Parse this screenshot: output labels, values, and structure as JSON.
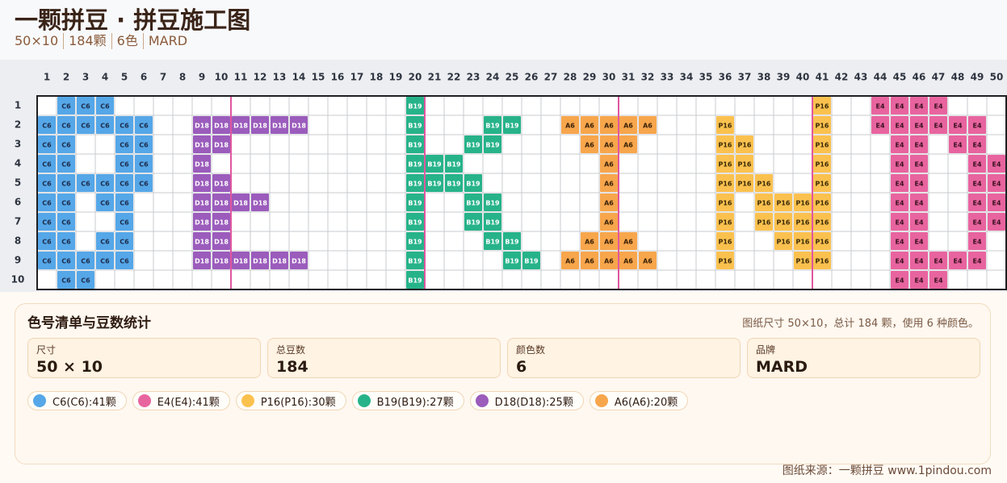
{
  "header": {
    "title": "一颗拼豆 · 拼豆施工图",
    "subtitle_parts": [
      "50×10",
      "184颗",
      "6色",
      "MARD"
    ]
  },
  "grid": {
    "column_labels": [
      1,
      2,
      3,
      4,
      5,
      6,
      7,
      8,
      9,
      10,
      11,
      12,
      13,
      14,
      15,
      16,
      17,
      18,
      19,
      20,
      21,
      22,
      23,
      24,
      25,
      26,
      27,
      28,
      29,
      30,
      31,
      32,
      33,
      34,
      35,
      36,
      37,
      38,
      39,
      40,
      41,
      42,
      43,
      44,
      45,
      46,
      47,
      48,
      49,
      50
    ],
    "row_labels": [
      1,
      2,
      3,
      4,
      5,
      6,
      7,
      8,
      9,
      10
    ],
    "rows": [
      [
        null,
        "C6",
        "C6",
        "C6",
        null,
        null,
        null,
        null,
        null,
        null,
        null,
        null,
        null,
        null,
        null,
        null,
        null,
        null,
        null,
        "B19",
        null,
        null,
        null,
        null,
        null,
        null,
        null,
        null,
        null,
        null,
        null,
        null,
        null,
        null,
        null,
        null,
        null,
        null,
        null,
        null,
        "P16",
        null,
        null,
        "E4",
        "E4",
        "E4",
        "E4",
        null,
        null,
        null
      ],
      [
        "C6",
        "C6",
        "C6",
        "C6",
        "C6",
        "C6",
        null,
        null,
        "D18",
        "D18",
        "D18",
        "D18",
        "D18",
        "D18",
        null,
        null,
        null,
        null,
        null,
        "B19",
        null,
        null,
        null,
        "B19",
        "B19",
        null,
        null,
        "A6",
        "A6",
        "A6",
        "A6",
        "A6",
        null,
        null,
        null,
        "P16",
        null,
        null,
        null,
        null,
        "P16",
        null,
        null,
        "E4",
        "E4",
        "E4",
        "E4",
        "E4",
        "E4",
        null
      ],
      [
        "C6",
        "C6",
        null,
        null,
        "C6",
        "C6",
        null,
        null,
        "D18",
        "D18",
        null,
        null,
        null,
        null,
        null,
        null,
        null,
        null,
        null,
        "B19",
        null,
        null,
        "B19",
        "B19",
        null,
        null,
        null,
        null,
        "A6",
        "A6",
        "A6",
        null,
        null,
        null,
        null,
        "P16",
        "P16",
        null,
        null,
        null,
        "P16",
        null,
        null,
        null,
        "E4",
        "E4",
        null,
        "E4",
        "E4",
        null
      ],
      [
        "C6",
        "C6",
        null,
        null,
        "C6",
        "C6",
        null,
        null,
        "D18",
        null,
        null,
        null,
        null,
        null,
        null,
        null,
        null,
        null,
        null,
        "B19",
        "B19",
        "B19",
        null,
        null,
        null,
        null,
        null,
        null,
        null,
        "A6",
        null,
        null,
        null,
        null,
        null,
        "P16",
        "P16",
        null,
        null,
        null,
        "P16",
        null,
        null,
        null,
        "E4",
        "E4",
        null,
        null,
        "E4",
        "E4"
      ],
      [
        "C6",
        "C6",
        "C6",
        "C6",
        "C6",
        "C6",
        null,
        null,
        "D18",
        "D18",
        null,
        null,
        null,
        null,
        null,
        null,
        null,
        null,
        null,
        "B19",
        "B19",
        "B19",
        "B19",
        null,
        null,
        null,
        null,
        null,
        null,
        "A6",
        null,
        null,
        null,
        null,
        null,
        "P16",
        "P16",
        "P16",
        null,
        null,
        "P16",
        null,
        null,
        null,
        "E4",
        "E4",
        null,
        null,
        "E4",
        "E4"
      ],
      [
        "C6",
        "C6",
        null,
        "C6",
        "C6",
        null,
        null,
        null,
        "D18",
        "D18",
        "D18",
        "D18",
        null,
        null,
        null,
        null,
        null,
        null,
        null,
        "B19",
        null,
        null,
        "B19",
        "B19",
        null,
        null,
        null,
        null,
        null,
        "A6",
        null,
        null,
        null,
        null,
        null,
        "P16",
        null,
        "P16",
        "P16",
        "P16",
        "P16",
        null,
        null,
        null,
        "E4",
        "E4",
        null,
        null,
        "E4",
        "E4"
      ],
      [
        "C6",
        "C6",
        null,
        null,
        "C6",
        null,
        null,
        null,
        "D18",
        "D18",
        null,
        null,
        null,
        null,
        null,
        null,
        null,
        null,
        null,
        "B19",
        null,
        null,
        "B19",
        "B19",
        null,
        null,
        null,
        null,
        null,
        "A6",
        null,
        null,
        null,
        null,
        null,
        "P16",
        null,
        "P16",
        "P16",
        "P16",
        "P16",
        null,
        null,
        null,
        "E4",
        "E4",
        null,
        null,
        "E4",
        "E4"
      ],
      [
        "C6",
        "C6",
        null,
        "C6",
        "C6",
        null,
        null,
        null,
        "D18",
        "D18",
        null,
        null,
        null,
        null,
        null,
        null,
        null,
        null,
        null,
        "B19",
        null,
        null,
        null,
        "B19",
        "B19",
        null,
        null,
        null,
        "A6",
        "A6",
        "A6",
        null,
        null,
        null,
        null,
        "P16",
        null,
        null,
        "P16",
        "P16",
        "P16",
        null,
        null,
        null,
        "E4",
        "E4",
        null,
        null,
        "E4",
        null
      ],
      [
        "C6",
        "C6",
        "C6",
        "C6",
        "C6",
        null,
        null,
        null,
        "D18",
        "D18",
        "D18",
        "D18",
        "D18",
        "D18",
        null,
        null,
        null,
        null,
        null,
        "B19",
        null,
        null,
        null,
        null,
        "B19",
        "B19",
        null,
        "A6",
        "A6",
        "A6",
        "A6",
        "A6",
        null,
        null,
        null,
        "P16",
        null,
        null,
        null,
        "P16",
        "P16",
        null,
        null,
        null,
        "E4",
        "E4",
        "E4",
        "E4",
        "E4",
        null
      ],
      [
        null,
        "C6",
        "C6",
        null,
        null,
        null,
        null,
        null,
        null,
        null,
        null,
        null,
        null,
        null,
        null,
        null,
        null,
        null,
        null,
        "B19",
        null,
        null,
        null,
        null,
        null,
        null,
        null,
        null,
        null,
        null,
        null,
        null,
        null,
        null,
        null,
        null,
        null,
        null,
        null,
        null,
        null,
        null,
        null,
        null,
        "E4",
        "E4",
        "E4",
        null,
        null,
        null
      ]
    ]
  },
  "palette": [
    {
      "code": "C6",
      "label": "C6(C6):41颗",
      "color": "#55a7e8",
      "text_color": "#1d2b4a"
    },
    {
      "code": "E4",
      "label": "E4(E4):41颗",
      "color": "#e8649f",
      "text_color": "#3a1020"
    },
    {
      "code": "P16",
      "label": "P16(P16):30颗",
      "color": "#fbc14f",
      "text_color": "#3a2a08"
    },
    {
      "code": "B19",
      "label": "B19(B19):27颗",
      "color": "#27b38a",
      "text_color": "#ffffff"
    },
    {
      "code": "D18",
      "label": "D18(D18):25颗",
      "color": "#9b5cbc",
      "text_color": "#ffffff"
    },
    {
      "code": "A6",
      "label": "A6(A6):20颗",
      "color": "#f7a64c",
      "text_color": "#3a2208"
    }
  ],
  "panel": {
    "title": "色号清单与豆数统计",
    "note": "图纸尺寸 50×10，总计 184 颗，使用 6 种颜色。",
    "stats": [
      {
        "label": "尺寸",
        "value": "50 × 10"
      },
      {
        "label": "总豆数",
        "value": "184"
      },
      {
        "label": "颜色数",
        "value": "6"
      },
      {
        "label": "品牌",
        "value": "MARD"
      }
    ]
  },
  "footer": "图纸来源：一颗拼豆 www.1pindou.com"
}
